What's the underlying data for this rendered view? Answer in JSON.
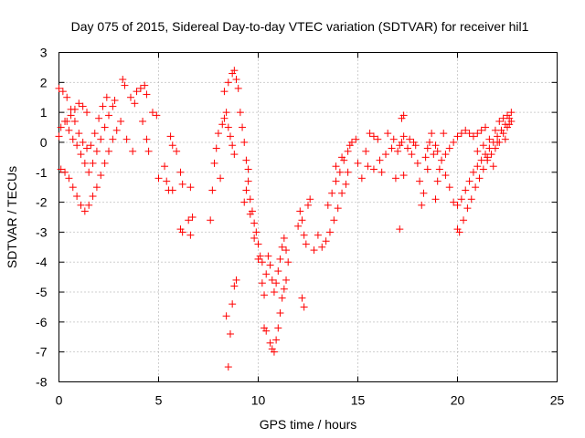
{
  "chart_data": {
    "type": "scatter",
    "title": "Day 075 of 2015, Sidereal Day-to-day VTEC variation (SDTVAR) for receiver hil1",
    "xlabel": "GPS time / hours",
    "ylabel": "SDTVAR / TECUs",
    "xlim": [
      0,
      25
    ],
    "ylim": [
      -8,
      3
    ],
    "x_ticks": [
      "0",
      "5",
      "10",
      "15",
      "20",
      "25"
    ],
    "y_ticks": [
      "3",
      "2",
      "1",
      "0",
      "-1",
      "-2",
      "-3",
      "-4",
      "-5",
      "-6",
      "-7",
      "-8"
    ],
    "grid": true,
    "marker": "plus",
    "marker_color": "#ff0000",
    "series": [
      {
        "points": [
          [
            0.0,
            0.2
          ],
          [
            0.1,
            0.5
          ],
          [
            0.3,
            0.7
          ],
          [
            0.5,
            0.4
          ],
          [
            0.7,
            0.1
          ],
          [
            0.9,
            -0.1
          ],
          [
            1.1,
            -0.4
          ],
          [
            1.3,
            -0.7
          ],
          [
            1.5,
            -1.0
          ],
          [
            1.7,
            -0.7
          ],
          [
            1.9,
            -0.3
          ],
          [
            2.1,
            0.1
          ],
          [
            2.3,
            0.5
          ],
          [
            2.5,
            0.9
          ],
          [
            2.7,
            1.2
          ],
          [
            2.8,
            1.4
          ],
          [
            0.0,
            1.8
          ],
          [
            0.2,
            1.7
          ],
          [
            0.4,
            1.5
          ],
          [
            0.6,
            1.1
          ],
          [
            0.8,
            0.7
          ],
          [
            1.0,
            0.3
          ],
          [
            1.2,
            0.0
          ],
          [
            1.4,
            -0.2
          ],
          [
            1.6,
            -0.1
          ],
          [
            1.8,
            0.3
          ],
          [
            2.0,
            0.8
          ],
          [
            2.2,
            1.2
          ],
          [
            2.4,
            1.5
          ],
          [
            0.1,
            -0.9
          ],
          [
            0.3,
            -1.0
          ],
          [
            0.5,
            -1.2
          ],
          [
            0.7,
            -1.5
          ],
          [
            0.9,
            -1.8
          ],
          [
            1.1,
            -2.1
          ],
          [
            1.3,
            -2.3
          ],
          [
            1.5,
            -2.1
          ],
          [
            1.7,
            -1.8
          ],
          [
            1.9,
            -1.5
          ],
          [
            2.1,
            -1.1
          ],
          [
            2.3,
            -0.7
          ],
          [
            2.5,
            -0.3
          ],
          [
            2.7,
            0.1
          ],
          [
            2.9,
            0.4
          ],
          [
            3.1,
            0.7
          ],
          [
            0.4,
            0.7
          ],
          [
            0.6,
            0.9
          ],
          [
            0.8,
            1.1
          ],
          [
            1.0,
            1.3
          ],
          [
            1.2,
            1.2
          ],
          [
            1.4,
            1.0
          ],
          [
            3.2,
            2.1
          ],
          [
            3.3,
            1.9
          ],
          [
            3.6,
            1.5
          ],
          [
            3.8,
            1.3
          ],
          [
            3.9,
            1.7
          ],
          [
            4.1,
            1.8
          ],
          [
            4.3,
            1.9
          ],
          [
            4.4,
            1.6
          ],
          [
            3.4,
            0.1
          ],
          [
            3.7,
            -0.3
          ],
          [
            4.2,
            0.7
          ],
          [
            4.4,
            0.1
          ],
          [
            4.5,
            -0.3
          ],
          [
            4.7,
            1.0
          ],
          [
            4.9,
            0.9
          ],
          [
            5.0,
            -1.2
          ],
          [
            5.3,
            -0.8
          ],
          [
            5.4,
            -1.3
          ],
          [
            5.5,
            -1.6
          ],
          [
            5.7,
            -1.6
          ],
          [
            5.6,
            0.2
          ],
          [
            5.7,
            -0.1
          ],
          [
            5.9,
            -0.3
          ],
          [
            6.1,
            -1.0
          ],
          [
            6.2,
            -1.4
          ],
          [
            6.1,
            -2.9
          ],
          [
            6.2,
            -3.0
          ],
          [
            6.5,
            -2.6
          ],
          [
            6.6,
            -1.5
          ],
          [
            6.7,
            -2.5
          ],
          [
            6.6,
            -3.1
          ],
          [
            7.6,
            -2.6
          ],
          [
            7.7,
            -1.6
          ],
          [
            7.8,
            -0.7
          ],
          [
            7.9,
            -0.2
          ],
          [
            8.0,
            0.3
          ],
          [
            8.1,
            -1.2
          ],
          [
            8.2,
            0.6
          ],
          [
            8.3,
            0.8
          ],
          [
            8.4,
            1.0
          ],
          [
            8.5,
            0.5
          ],
          [
            8.6,
            0.2
          ],
          [
            8.7,
            -0.1
          ],
          [
            8.8,
            -0.4
          ],
          [
            8.3,
            1.7
          ],
          [
            8.5,
            2.0
          ],
          [
            8.7,
            2.3
          ],
          [
            8.8,
            2.4
          ],
          [
            8.9,
            2.1
          ],
          [
            9.0,
            1.8
          ],
          [
            8.4,
            -5.8
          ],
          [
            8.5,
            -7.5
          ],
          [
            8.6,
            -6.4
          ],
          [
            8.7,
            -5.4
          ],
          [
            8.8,
            -4.8
          ],
          [
            8.9,
            -4.6
          ],
          [
            9.1,
            1.0
          ],
          [
            9.2,
            0.5
          ],
          [
            9.3,
            0.0
          ],
          [
            9.4,
            -0.6
          ],
          [
            9.5,
            -1.3
          ],
          [
            9.6,
            -1.9
          ],
          [
            9.7,
            -2.3
          ],
          [
            9.8,
            -2.7
          ],
          [
            9.9,
            -3.0
          ],
          [
            10.0,
            -3.4
          ],
          [
            10.1,
            -3.8
          ],
          [
            10.2,
            -4.0
          ],
          [
            9.3,
            -2.0
          ],
          [
            9.4,
            -1.6
          ],
          [
            9.5,
            -0.9
          ],
          [
            9.6,
            -2.4
          ],
          [
            9.8,
            -3.2
          ],
          [
            10.0,
            -3.9
          ],
          [
            10.2,
            -4.7
          ],
          [
            10.3,
            -5.1
          ],
          [
            10.4,
            -4.4
          ],
          [
            10.5,
            -3.8
          ],
          [
            10.6,
            -4.1
          ],
          [
            10.7,
            -4.6
          ],
          [
            10.8,
            -5.0
          ],
          [
            10.9,
            -4.7
          ],
          [
            11.0,
            -4.3
          ],
          [
            11.1,
            -3.9
          ],
          [
            11.2,
            -3.5
          ],
          [
            11.3,
            -3.2
          ],
          [
            11.4,
            -3.6
          ],
          [
            11.5,
            -4.0
          ],
          [
            10.3,
            -6.2
          ],
          [
            10.4,
            -6.3
          ],
          [
            10.6,
            -6.7
          ],
          [
            10.7,
            -6.9
          ],
          [
            10.8,
            -7.0
          ],
          [
            10.9,
            -6.6
          ],
          [
            11.0,
            -6.2
          ],
          [
            11.1,
            -5.7
          ],
          [
            11.2,
            -5.2
          ],
          [
            11.3,
            -4.9
          ],
          [
            11.4,
            -4.6
          ],
          [
            12.0,
            -2.8
          ],
          [
            12.1,
            -2.3
          ],
          [
            12.2,
            -2.6
          ],
          [
            12.3,
            -3.1
          ],
          [
            12.4,
            -3.4
          ],
          [
            12.5,
            -2.1
          ],
          [
            12.6,
            -1.9
          ],
          [
            12.2,
            -5.2
          ],
          [
            12.3,
            -5.5
          ],
          [
            12.8,
            -3.6
          ],
          [
            13.0,
            -3.1
          ],
          [
            13.2,
            -3.5
          ],
          [
            13.4,
            -3.3
          ],
          [
            13.6,
            -3.0
          ],
          [
            13.8,
            -2.6
          ],
          [
            14.0,
            -2.2
          ],
          [
            14.2,
            -1.7
          ],
          [
            14.4,
            -1.4
          ],
          [
            14.5,
            -1.0
          ],
          [
            13.5,
            -2.1
          ],
          [
            13.7,
            -1.7
          ],
          [
            13.9,
            -1.3
          ],
          [
            14.1,
            -1.0
          ],
          [
            14.3,
            -0.6
          ],
          [
            14.5,
            -0.3
          ],
          [
            14.7,
            0.0
          ],
          [
            14.9,
            0.1
          ],
          [
            13.9,
            -0.8
          ],
          [
            14.2,
            -0.5
          ],
          [
            14.6,
            -0.1
          ],
          [
            15.0,
            -0.7
          ],
          [
            15.2,
            -1.2
          ],
          [
            15.4,
            -0.3
          ],
          [
            15.6,
            0.3
          ],
          [
            15.8,
            0.2
          ],
          [
            16.0,
            0.1
          ],
          [
            15.5,
            -0.8
          ],
          [
            15.8,
            -0.9
          ],
          [
            16.1,
            -0.6
          ],
          [
            16.4,
            -0.4
          ],
          [
            16.7,
            -0.2
          ],
          [
            17.0,
            -0.3
          ],
          [
            17.2,
            0.0
          ],
          [
            17.5,
            -0.2
          ],
          [
            17.7,
            -0.4
          ],
          [
            17.9,
            -0.1
          ],
          [
            16.5,
            0.3
          ],
          [
            16.8,
            0.1
          ],
          [
            17.1,
            -0.1
          ],
          [
            17.3,
            0.2
          ],
          [
            17.6,
            0.1
          ],
          [
            17.8,
            0.0
          ],
          [
            16.2,
            -1.0
          ],
          [
            16.9,
            -1.2
          ],
          [
            17.3,
            -1.1
          ],
          [
            17.1,
            -2.9
          ],
          [
            17.3,
            0.9
          ],
          [
            17.2,
            0.8
          ],
          [
            18.0,
            -0.7
          ],
          [
            18.1,
            -1.3
          ],
          [
            18.2,
            -2.1
          ],
          [
            18.3,
            -1.7
          ],
          [
            18.4,
            -0.5
          ],
          [
            18.5,
            -0.2
          ],
          [
            18.6,
            0.0
          ],
          [
            18.7,
            0.3
          ],
          [
            18.5,
            -0.9
          ],
          [
            18.8,
            -0.4
          ],
          [
            18.9,
            -0.1
          ],
          [
            19.0,
            -0.3
          ],
          [
            19.2,
            -0.6
          ],
          [
            19.4,
            -0.4
          ],
          [
            19.6,
            -0.2
          ],
          [
            19.8,
            0.0
          ],
          [
            20.0,
            0.2
          ],
          [
            20.2,
            0.3
          ],
          [
            20.4,
            0.4
          ],
          [
            20.6,
            0.3
          ],
          [
            20.8,
            0.2
          ],
          [
            21.0,
            0.3
          ],
          [
            21.2,
            0.4
          ],
          [
            21.4,
            0.5
          ],
          [
            19.4,
            -1.1
          ],
          [
            19.6,
            -1.5
          ],
          [
            19.8,
            -2.0
          ],
          [
            20.0,
            -2.1
          ],
          [
            20.2,
            -1.9
          ],
          [
            20.4,
            -1.6
          ],
          [
            20.6,
            -1.3
          ],
          [
            20.8,
            -1.0
          ],
          [
            21.0,
            -0.8
          ],
          [
            21.2,
            -0.6
          ],
          [
            21.4,
            -0.4
          ],
          [
            21.6,
            -0.2
          ],
          [
            21.8,
            0.0
          ],
          [
            22.0,
            0.2
          ],
          [
            22.2,
            0.4
          ],
          [
            22.4,
            0.6
          ],
          [
            22.6,
            0.8
          ],
          [
            22.7,
            1.0
          ],
          [
            20.0,
            -2.9
          ],
          [
            20.1,
            -3.0
          ],
          [
            20.3,
            -2.6
          ],
          [
            20.5,
            -2.2
          ],
          [
            20.7,
            -1.9
          ],
          [
            20.9,
            -1.5
          ],
          [
            21.1,
            -1.2
          ],
          [
            21.3,
            -0.9
          ],
          [
            21.5,
            -0.6
          ],
          [
            21.7,
            -0.4
          ],
          [
            21.9,
            -0.2
          ],
          [
            22.1,
            0.0
          ],
          [
            22.3,
            0.3
          ],
          [
            22.5,
            0.5
          ],
          [
            22.7,
            0.7
          ],
          [
            21.0,
            -0.3
          ],
          [
            21.3,
            -0.1
          ],
          [
            21.6,
            0.1
          ],
          [
            21.9,
            0.4
          ],
          [
            22.1,
            0.7
          ],
          [
            22.3,
            0.8
          ],
          [
            22.5,
            0.9
          ],
          [
            22.6,
            0.6
          ],
          [
            22.4,
            0.1
          ],
          [
            21.8,
            -0.8
          ],
          [
            21.5,
            -0.5
          ],
          [
            22.0,
            0.0
          ],
          [
            19.3,
            0.3
          ],
          [
            19.1,
            -0.9
          ],
          [
            19.0,
            -1.3
          ],
          [
            18.9,
            -1.9
          ]
        ]
      }
    ]
  }
}
